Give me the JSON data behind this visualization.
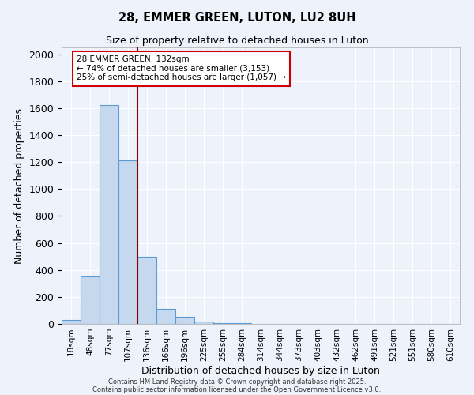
{
  "title1": "28, EMMER GREEN, LUTON, LU2 8UH",
  "title2": "Size of property relative to detached houses in Luton",
  "xlabel": "Distribution of detached houses by size in Luton",
  "ylabel": "Number of detached properties",
  "bar_labels": [
    "18sqm",
    "48sqm",
    "77sqm",
    "107sqm",
    "136sqm",
    "166sqm",
    "196sqm",
    "225sqm",
    "255sqm",
    "284sqm",
    "314sqm",
    "344sqm",
    "373sqm",
    "403sqm",
    "432sqm",
    "462sqm",
    "491sqm",
    "521sqm",
    "551sqm",
    "580sqm",
    "610sqm"
  ],
  "bar_values": [
    30,
    350,
    1620,
    1210,
    500,
    110,
    50,
    20,
    8,
    3,
    0,
    0,
    0,
    0,
    0,
    0,
    0,
    0,
    0,
    0,
    0
  ],
  "bar_color": "#c5d8ed",
  "bar_edge_color": "#5b9bd5",
  "vline_color": "#8b0000",
  "annotation_text": "28 EMMER GREEN: 132sqm\n← 74% of detached houses are smaller (3,153)\n25% of semi-detached houses are larger (1,057) →",
  "annotation_box_color": "white",
  "annotation_box_edge": "#cc0000",
  "ylim": [
    0,
    2050
  ],
  "yticks": [
    0,
    200,
    400,
    600,
    800,
    1000,
    1200,
    1400,
    1600,
    1800,
    2000
  ],
  "bg_color": "#eef2fb",
  "grid_color": "#ffffff",
  "footer1": "Contains HM Land Registry data © Crown copyright and database right 2025.",
  "footer2": "Contains public sector information licensed under the Open Government Licence v3.0."
}
